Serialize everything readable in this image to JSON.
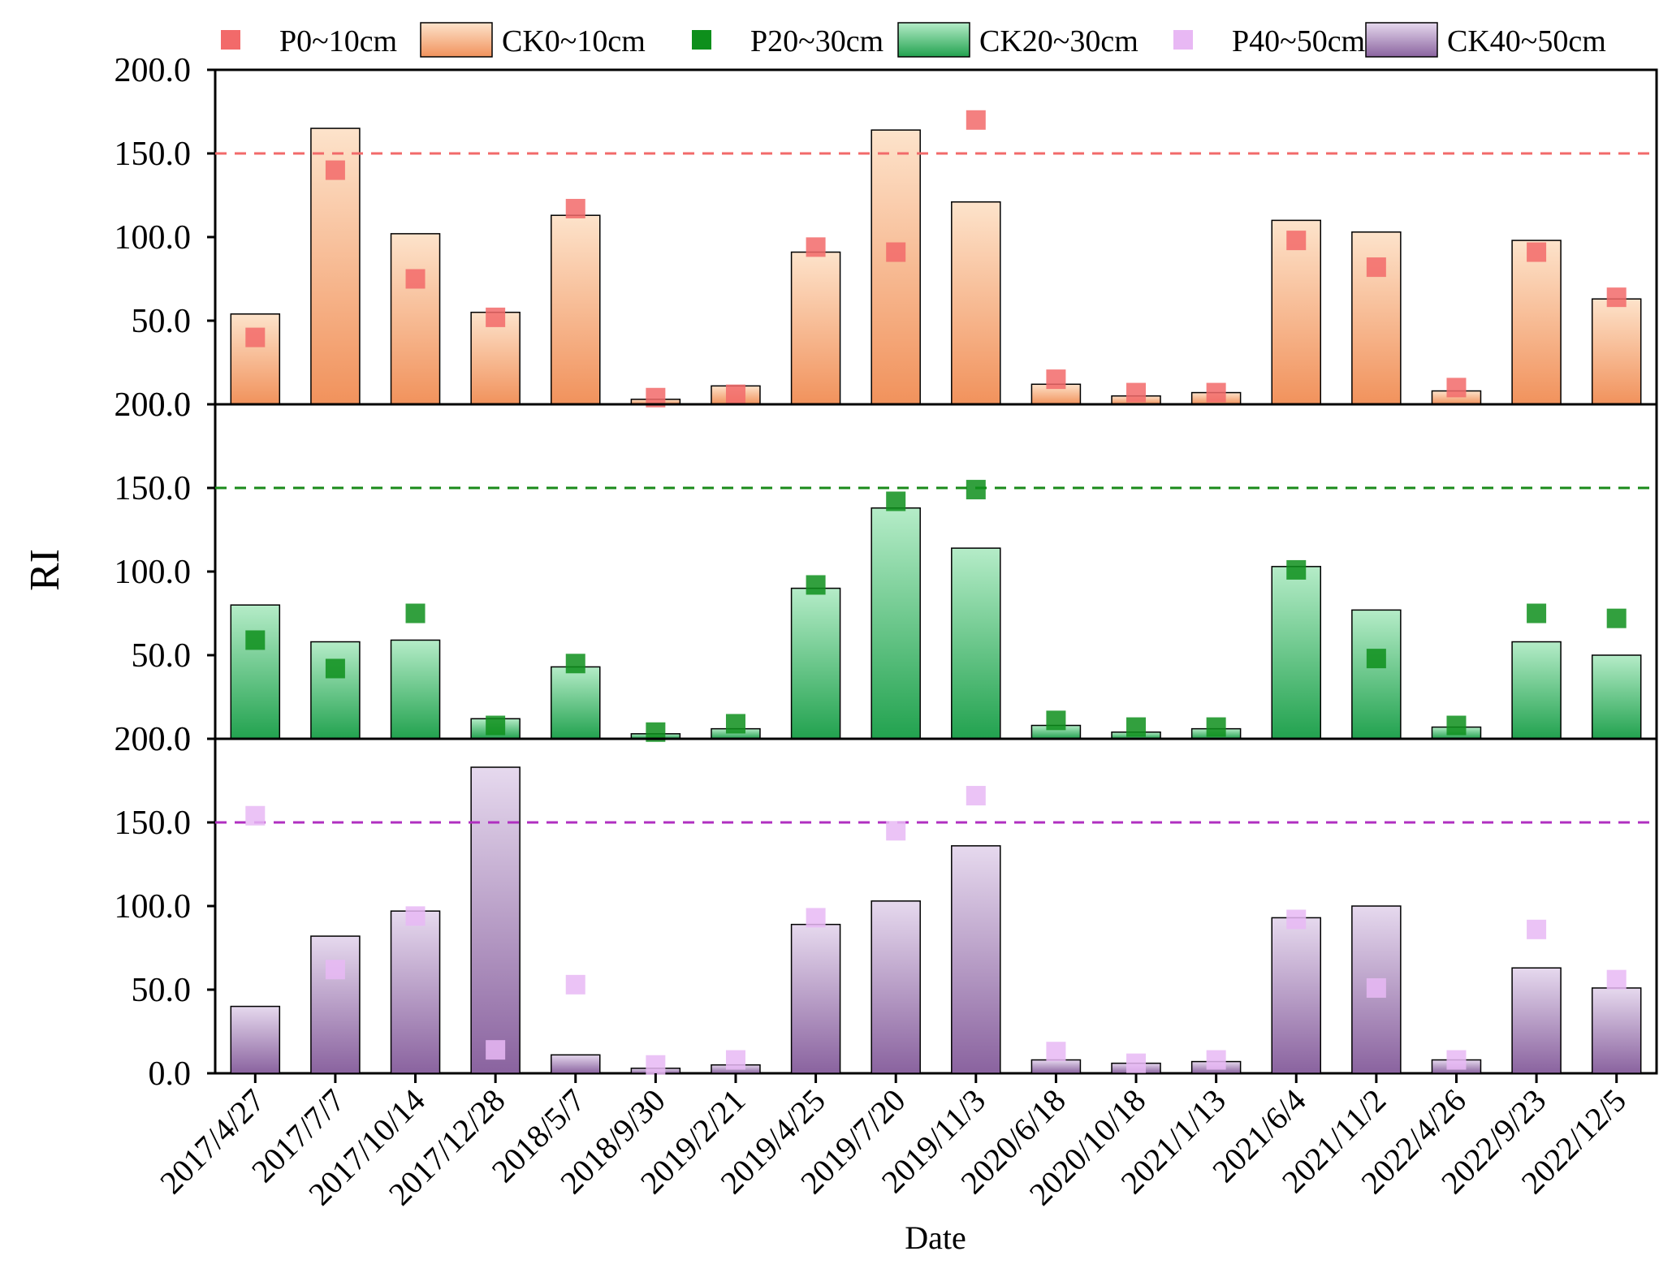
{
  "chart_data": {
    "type": "bar",
    "ylabel": "RI",
    "xlabel": "Date",
    "ylim": [
      0,
      200
    ],
    "yticks": [
      "0.0",
      "50.0",
      "100.0",
      "150.0",
      "200.0"
    ],
    "threshold": 150,
    "categories": [
      "2017/4/27",
      "2017/7/7",
      "2017/10/14",
      "2017/12/28",
      "2018/5/7",
      "2018/9/30",
      "2019/2/21",
      "2019/4/25",
      "2019/7/20",
      "2019/11/3",
      "2020/6/18",
      "2020/10/18",
      "2021/1/13",
      "2021/6/4",
      "2021/11/2",
      "2022/4/26",
      "2022/9/23",
      "2022/12/5"
    ],
    "legend": {
      "placement": "top",
      "entries": [
        {
          "label": "P0~10cm",
          "kind": "marker",
          "color": "#f26a6a"
        },
        {
          "label": "CK0~10cm",
          "kind": "bar",
          "color": "#f4a070"
        },
        {
          "label": "P20~30cm",
          "kind": "marker",
          "color": "#0e8f1c"
        },
        {
          "label": "CK20~30cm",
          "kind": "bar",
          "color": "#3db86b"
        },
        {
          "label": "P40~50cm",
          "kind": "marker",
          "color": "#e8b8f4"
        },
        {
          "label": "CK40~50cm",
          "kind": "bar",
          "color": "#9b77b0"
        }
      ]
    },
    "panels": [
      {
        "depth": "0~10cm",
        "bar_series": "CK0~10cm",
        "marker_series": "P0~10cm",
        "bar_top_color": "#fde3cb",
        "bar_bottom_color": "#f1925c",
        "marker_color": "#f26a6a",
        "threshold_color": "#f26a6a",
        "bars": [
          54,
          165,
          102,
          55,
          113,
          3,
          11,
          91,
          164,
          121,
          12,
          5,
          7,
          110,
          103,
          8,
          98,
          63
        ],
        "markers": [
          40,
          140,
          75,
          52,
          117,
          4,
          6,
          94,
          91,
          170,
          15,
          7,
          7,
          98,
          82,
          10,
          91,
          64
        ]
      },
      {
        "depth": "20~30cm",
        "bar_series": "CK20~30cm",
        "marker_series": "P20~30cm",
        "bar_top_color": "#b5ecc8",
        "bar_bottom_color": "#22a24f",
        "marker_color": "#0e8f1c",
        "threshold_color": "#1a8a1a",
        "bars": [
          80,
          58,
          59,
          12,
          43,
          3,
          6,
          90,
          138,
          114,
          8,
          4,
          6,
          103,
          77,
          7,
          58,
          50
        ],
        "markers": [
          59,
          42,
          75,
          8,
          45,
          4,
          9,
          92,
          142,
          149,
          11,
          7,
          7,
          101,
          48,
          8,
          75,
          72
        ]
      },
      {
        "depth": "40~50cm",
        "bar_series": "CK40~50cm",
        "marker_series": "P40~50cm",
        "bar_top_color": "#e6d9ee",
        "bar_bottom_color": "#8a639f",
        "marker_color": "#e8b8f4",
        "threshold_color": "#b030c0",
        "bars": [
          40,
          82,
          97,
          183,
          11,
          3,
          5,
          89,
          103,
          136,
          8,
          6,
          7,
          93,
          100,
          8,
          63,
          51
        ],
        "markers": [
          154,
          62,
          94,
          14,
          53,
          5,
          8,
          93,
          145,
          166,
          13,
          6,
          8,
          92,
          51,
          8,
          86,
          56
        ]
      }
    ]
  }
}
